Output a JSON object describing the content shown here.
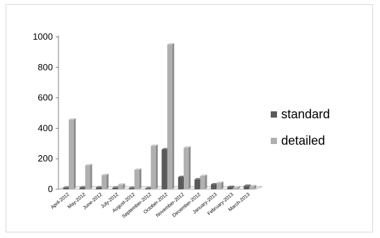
{
  "chart_data": {
    "type": "bar",
    "title": "",
    "xlabel": "",
    "ylabel": "",
    "ylim": [
      0,
      1000
    ],
    "yticks": [
      0,
      200,
      400,
      600,
      800,
      1000
    ],
    "grid": false,
    "legend_position": "right",
    "categories": [
      "April-2012",
      "May-2012",
      "June-2012",
      "July-2012",
      "August-2012",
      "September-2012",
      "October-2012",
      "November-2012",
      "December-2012",
      "January-2013",
      "February-2013",
      "March-2013"
    ],
    "series": [
      {
        "name": "standard",
        "color": "#5a5a5a",
        "values": [
          10,
          12,
          12,
          10,
          8,
          6,
          262,
          80,
          65,
          32,
          15,
          22
        ]
      },
      {
        "name": "detailed",
        "color": "#b0b0b0",
        "values": [
          457,
          157,
          93,
          30,
          128,
          285,
          950,
          273,
          88,
          42,
          12,
          20
        ]
      }
    ]
  }
}
